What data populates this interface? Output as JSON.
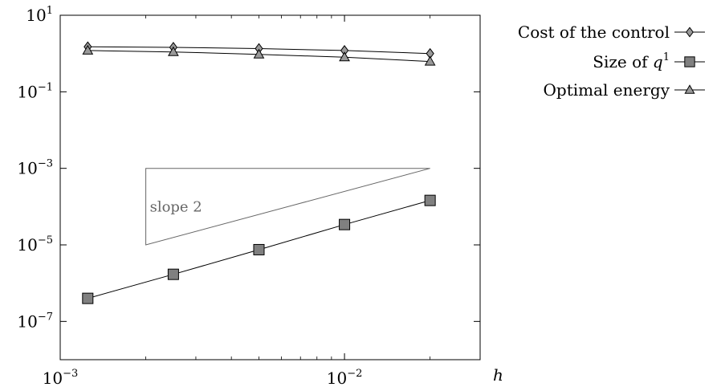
{
  "chart_data": {
    "type": "line",
    "xscale": "log",
    "yscale": "log",
    "xlim": [
      0.001,
      0.03
    ],
    "ylim": [
      1e-08,
      10
    ],
    "xlabel": "h",
    "ylabel": "",
    "grid": false,
    "legend_position": "outside-right-top",
    "x_ticks": [
      {
        "value": 0.001,
        "base": "10",
        "exp": "−3"
      },
      {
        "value": 0.01,
        "base": "10",
        "exp": "−2"
      }
    ],
    "y_ticks": [
      {
        "value": 10,
        "base": "10",
        "exp": "1"
      },
      {
        "value": 0.1,
        "base": "10",
        "exp": "−1"
      },
      {
        "value": 0.001,
        "base": "10",
        "exp": "−3"
      },
      {
        "value": 1e-05,
        "base": "10",
        "exp": "−5"
      },
      {
        "value": 1e-07,
        "base": "10",
        "exp": "−7"
      }
    ],
    "series": [
      {
        "name": "Cost of the control",
        "marker": "diamond",
        "fill": "#999999",
        "x": [
          0.00125,
          0.0025,
          0.005,
          0.01,
          0.02
        ],
        "y": [
          1.5,
          1.45,
          1.35,
          1.2,
          1.0
        ]
      },
      {
        "name": "Size of q¹",
        "legend_main": "Size of ",
        "legend_math": "q",
        "legend_sup": "1",
        "marker": "square",
        "fill": "#808080",
        "x": [
          0.00125,
          0.0025,
          0.005,
          0.01,
          0.02
        ],
        "y": [
          4e-07,
          1.7e-06,
          7.5e-06,
          3.4e-05,
          0.000145
        ]
      },
      {
        "name": "Optimal energy",
        "marker": "triangle",
        "fill": "#999999",
        "x": [
          0.00125,
          0.0025,
          0.005,
          0.01,
          0.02
        ],
        "y": [
          1.2,
          1.1,
          0.95,
          0.8,
          0.62
        ]
      }
    ],
    "annotation": {
      "label": "slope 2",
      "color": "#666666",
      "vertices": [
        [
          0.002,
          0.001
        ],
        [
          0.02,
          0.001
        ],
        [
          0.002,
          1e-05
        ]
      ]
    }
  }
}
